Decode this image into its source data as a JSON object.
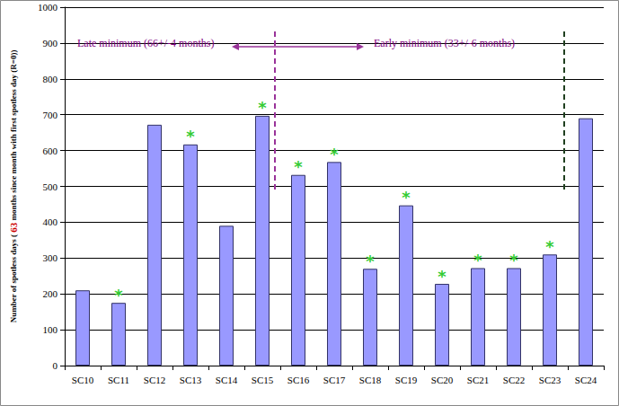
{
  "chart_data": {
    "type": "bar",
    "ylabel": "Number of spotless days ( 63 months since month with first spotless day (R=0))",
    "ylabel_highlight": "63",
    "categories": [
      "SC10",
      "SC11",
      "SC12",
      "SC13",
      "SC14",
      "SC15",
      "SC16",
      "SC17",
      "SC18",
      "SC19",
      "SC20",
      "SC21",
      "SC22",
      "SC23",
      "SC24"
    ],
    "values": [
      210,
      175,
      672,
      617,
      390,
      697,
      532,
      568,
      270,
      447,
      228,
      272,
      272,
      310,
      690
    ],
    "asterisk": "*",
    "asterisk_marks": [
      false,
      true,
      false,
      true,
      false,
      true,
      true,
      true,
      true,
      true,
      true,
      true,
      true,
      true,
      false
    ],
    "annotations": [
      "Late minimum (66+/-4 months)",
      "Early minimum (33+/-6 months)"
    ],
    "color": "#9999ff",
    "ylim": [
      0,
      1000
    ],
    "yticks": [
      0,
      100,
      200,
      300,
      400,
      500,
      600,
      700,
      800,
      900,
      1000
    ],
    "grid": true
  }
}
